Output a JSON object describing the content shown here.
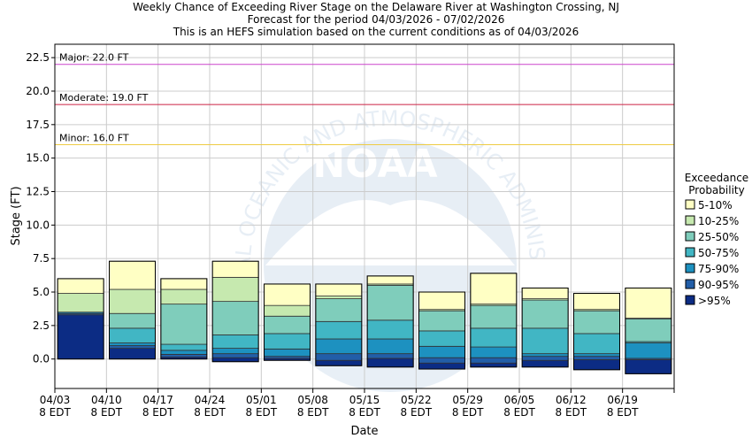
{
  "chart_data": {
    "type": "bar",
    "stacked": true,
    "title": [
      "Weekly Chance of Exceeding River Stage on the Delaware River at Washington Crossing, NJ",
      "Forecast for the period 04/03/2026 - 07/02/2026",
      "This is an HEFS simulation based on the current conditions as of 04/03/2026"
    ],
    "xlabel": "Date",
    "ylabel": "Stage (FT)",
    "ylim": [
      -2.2,
      23.5
    ],
    "yticks": [
      0.0,
      2.5,
      5.0,
      7.5,
      10.0,
      12.5,
      15.0,
      17.5,
      20.0,
      22.5
    ],
    "ytick_labels": [
      "0.0",
      "2.5",
      "5.0",
      "7.5",
      "10.0",
      "12.5",
      "15.0",
      "17.5",
      "20.0",
      "22.5"
    ],
    "grid": true,
    "x_ticks": [
      {
        "date": "04/03",
        "tz": "8 EDT"
      },
      {
        "date": "04/10",
        "tz": "8 EDT"
      },
      {
        "date": "04/17",
        "tz": "8 EDT"
      },
      {
        "date": "04/24",
        "tz": "8 EDT"
      },
      {
        "date": "05/01",
        "tz": "8 EDT"
      },
      {
        "date": "05/08",
        "tz": "8 EDT"
      },
      {
        "date": "05/15",
        "tz": "8 EDT"
      },
      {
        "date": "05/22",
        "tz": "8 EDT"
      },
      {
        "date": "05/29",
        "tz": "8 EDT"
      },
      {
        "date": "06/05",
        "tz": "8 EDT"
      },
      {
        "date": "06/12",
        "tz": "8 EDT"
      },
      {
        "date": "06/19",
        "tz": "8 EDT"
      }
    ],
    "thresholds": [
      {
        "label": "Major: 22.0 FT",
        "value": 22.0,
        "color": "#cc44cc"
      },
      {
        "label": "Moderate: 19.0 FT",
        "value": 19.0,
        "color": "#cc2244"
      },
      {
        "label": "Minor: 16.0 FT",
        "value": 16.0,
        "color": "#eecc44"
      }
    ],
    "legend": {
      "title": [
        "Exceedance",
        "Probability"
      ],
      "placement": "right",
      "entries": [
        {
          "label": "5-10%",
          "color": "#ffffc4"
        },
        {
          "label": "10-25%",
          "color": "#c6e9af"
        },
        {
          "label": "25-50%",
          "color": "#7fcdbb"
        },
        {
          "label": "50-75%",
          "color": "#41b6c4"
        },
        {
          "label": "75-90%",
          "color": "#1d91c0"
        },
        {
          "label": "90-95%",
          "color": "#225ea8"
        },
        {
          "label": ">95%",
          "color": "#0c2c84"
        }
      ]
    },
    "boundary_names": [
      ">95%",
      "90-95%",
      "75-90%",
      "50-75%",
      "25-50%",
      "10-25%",
      "5-10%"
    ],
    "boundaries": [
      [
        0.0,
        3.3,
        3.4,
        3.5,
        3.5,
        3.5,
        4.9,
        6.0
      ],
      [
        0.0,
        0.8,
        1.0,
        1.2,
        2.3,
        3.4,
        5.2,
        7.3
      ],
      [
        0.0,
        0.15,
        0.35,
        0.65,
        1.1,
        4.1,
        5.2,
        6.0
      ],
      [
        -0.2,
        0.1,
        0.4,
        0.8,
        1.8,
        4.3,
        6.1,
        7.3
      ],
      [
        -0.1,
        0.05,
        0.2,
        0.75,
        1.9,
        3.2,
        4.0,
        5.6
      ],
      [
        -0.5,
        -0.1,
        0.4,
        1.5,
        2.8,
        4.5,
        4.7,
        5.6
      ],
      [
        -0.6,
        0.05,
        0.4,
        1.5,
        2.9,
        5.5,
        5.6,
        6.2
      ],
      [
        -0.75,
        -0.3,
        0.1,
        0.95,
        2.1,
        3.6,
        3.7,
        5.0
      ],
      [
        -0.6,
        -0.3,
        0.1,
        0.9,
        2.3,
        4.0,
        4.1,
        6.4
      ],
      [
        -0.6,
        -0.1,
        0.2,
        0.4,
        2.3,
        4.4,
        4.5,
        5.3
      ],
      [
        -0.8,
        -0.05,
        0.2,
        0.4,
        1.9,
        3.6,
        3.7,
        4.9
      ],
      [
        -1.1,
        -0.05,
        0.05,
        1.2,
        1.3,
        3.0,
        3.05,
        5.3
      ]
    ]
  },
  "watermark": {
    "logo_text": "NOAA",
    "ring_text": "NATIONAL OCEANIC AND ATMOSPHERIC ADMINISTRATION"
  }
}
